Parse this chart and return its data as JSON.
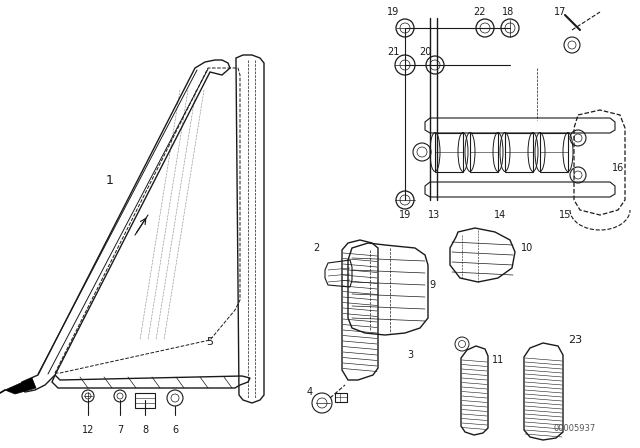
{
  "bg_color": "#ffffff",
  "line_color": "#1a1a1a",
  "watermark": "00005937",
  "fig_w": 6.4,
  "fig_h": 4.48,
  "dpi": 100
}
